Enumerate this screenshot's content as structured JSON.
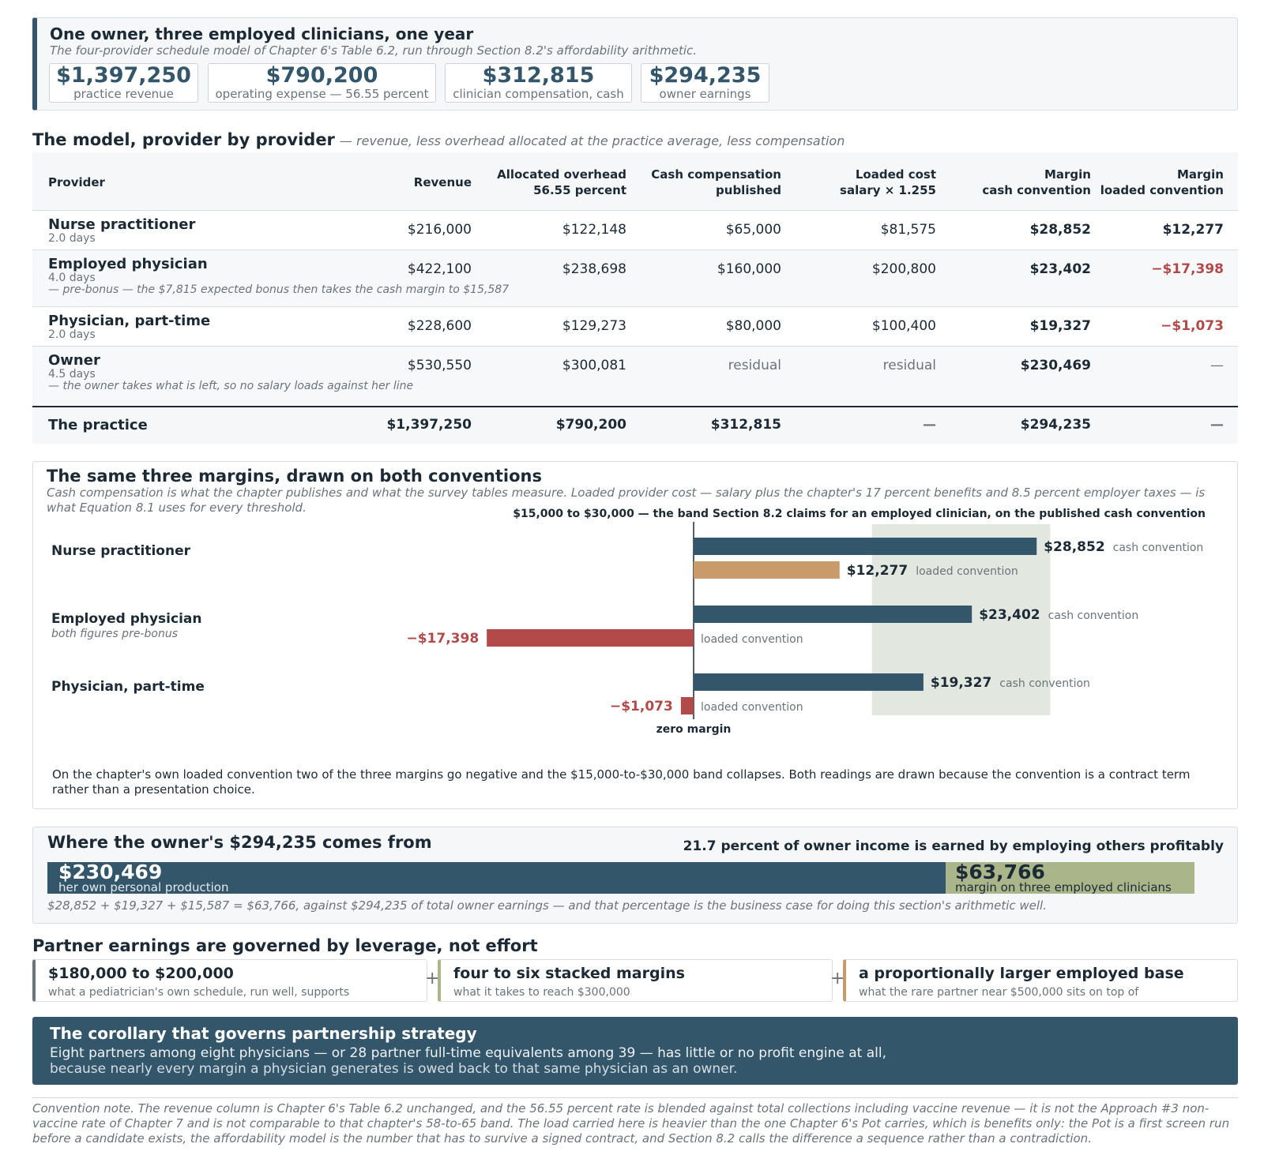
{
  "header": {
    "title": "One owner, three employed clinicians, one year",
    "subtitle": "The four-provider schedule model of Chapter 6's Table 6.2, run through Section 8.2's affordability arithmetic.",
    "kpis": [
      {
        "value": "$1,397,250",
        "label": "practice revenue"
      },
      {
        "value": "$790,200",
        "label": "operating expense — 56.55 percent"
      },
      {
        "value": "$312,815",
        "label": "clinician compensation, cash"
      },
      {
        "value": "$294,235",
        "label": "owner earnings"
      }
    ]
  },
  "model": {
    "title": "The model, provider by provider",
    "note": "— revenue, less overhead allocated at the practice average, less compensation",
    "headers": [
      "Provider",
      "Revenue",
      "Allocated overhead\n56.55 percent",
      "Cash compensation\npublished",
      "Loaded cost\nsalary × 1.255",
      "Margin\ncash convention",
      "Margin\nloaded convention"
    ],
    "rows": [
      {
        "name": "Nurse practitioner",
        "days": "2.0 days",
        "note": "",
        "revenue": "$216,000",
        "overhead": "$122,148",
        "cash": "$65,000",
        "loaded": "$81,575",
        "margin_cash": "$28,852",
        "margin_loaded": "$12,277"
      },
      {
        "name": "Employed physician",
        "days": "4.0 days",
        "note": "— pre-bonus — the $7,815 expected bonus then takes the cash margin to $15,587",
        "revenue": "$422,100",
        "overhead": "$238,698",
        "cash": "$160,000",
        "loaded": "$200,800",
        "margin_cash": "$23,402",
        "margin_loaded": "−$17,398"
      },
      {
        "name": "Physician, part-time",
        "days": "2.0 days",
        "note": "",
        "revenue": "$228,600",
        "overhead": "$129,273",
        "cash": "$80,000",
        "loaded": "$100,400",
        "margin_cash": "$19,327",
        "margin_loaded": "−$1,073"
      },
      {
        "name": "Owner",
        "days": "4.5 days",
        "note": "— the owner takes what is left, so no salary loads against her line",
        "revenue": "$530,550",
        "overhead": "$300,081",
        "cash": "residual",
        "loaded": "residual",
        "margin_cash": "$230,469",
        "margin_loaded": "—"
      }
    ],
    "total": {
      "name": "The practice",
      "revenue": "$1,397,250",
      "overhead": "$790,200",
      "cash": "$312,815",
      "loaded": "—",
      "margin_cash": "$294,235",
      "margin_loaded": "—"
    }
  },
  "margins_card": {
    "title": "The same three margins, drawn on both conventions",
    "subtitle": "Cash compensation is what the chapter publishes and what the survey tables measure. Loaded provider cost — salary plus the chapter's 17 percent benefits and 8.5 percent employer taxes — is what Equation 8.1 uses for every threshold.",
    "footer": "On the chapter's own loaded convention two of the three margins go negative and the $15,000-to-$30,000 band collapses. Both readings are drawn because the convention is a contract term rather than a presentation choice."
  },
  "chart_data": {
    "type": "bar",
    "orientation": "horizontal",
    "band_label": "$15,000 to $30,000 — the band Section 8.2 claims for an employed clinician, on the published cash convention",
    "band": [
      15000,
      30000
    ],
    "zero_label": "zero margin",
    "categories": [
      {
        "name": "Nurse practitioner",
        "note": ""
      },
      {
        "name": "Employed physician",
        "note": "both figures pre-bonus"
      },
      {
        "name": "Physician, part-time",
        "note": ""
      }
    ],
    "series": [
      {
        "name": "cash convention",
        "color": "#34566a",
        "values": [
          28852,
          23402,
          19327
        ],
        "labels": [
          "$28,852",
          "$23,402",
          "$19,327"
        ]
      },
      {
        "name": "loaded convention",
        "color": "#c99a6a",
        "neg_color": "#b34a4a",
        "values": [
          12277,
          -17398,
          -1073
        ],
        "labels": [
          "$12,277",
          "−$17,398",
          "−$1,073"
        ]
      }
    ]
  },
  "owner": {
    "title": "Where the owner's $294,235 comes from",
    "right_note": "21.7 percent of owner income is earned by employing others profitably",
    "own_value": "$230,469",
    "own_label": "her own personal production",
    "own_amount": 230469,
    "emp_value": "$63,766",
    "emp_label": "margin on three employed clinicians",
    "emp_amount": 63766,
    "footer": "$28,852 + $19,327 + $15,587 = $63,766, against $294,235 of total owner earnings — and that percentage is the business case for doing this section's arithmetic well."
  },
  "leverage": {
    "title": "Partner earnings are governed by leverage, not effort",
    "plus": "+",
    "items": [
      {
        "value": "$180,000 to $200,000",
        "label": "what a pediatrician's own schedule, run well, supports",
        "color": "#6b737b"
      },
      {
        "value": "four to six stacked margins",
        "label": "what it takes to reach $300,000",
        "color": "#aab68a"
      },
      {
        "value": "a proportionally larger employed base",
        "label": "what the rare partner near $500,000 sits on top of",
        "color": "#c99a6a"
      }
    ]
  },
  "corollary": {
    "title": "The corollary that governs partnership strategy",
    "line1": "Eight partners among eight physicians — or 28 partner full-time equivalents among 39 — has little or no profit engine at all,",
    "line2": "because nearly every margin a physician generates is owed back to that same physician as an owner."
  },
  "convention_note": "Convention note. The revenue column is Chapter 6's Table 6.2 unchanged, and the 56.55 percent rate is blended against total collections including vaccine revenue — it is not the Approach #3 non-vaccine rate of Chapter 7 and is not comparable to that chapter's 58-to-65 band. The load carried here is heavier than the one Chapter 6's Pot carries, which is benefits only: the Pot is a first screen run before a candidate exists, the affordability model is the number that has to survive a signed contract, and Section 8.2 calls the difference a sequence rather than a contradiction."
}
